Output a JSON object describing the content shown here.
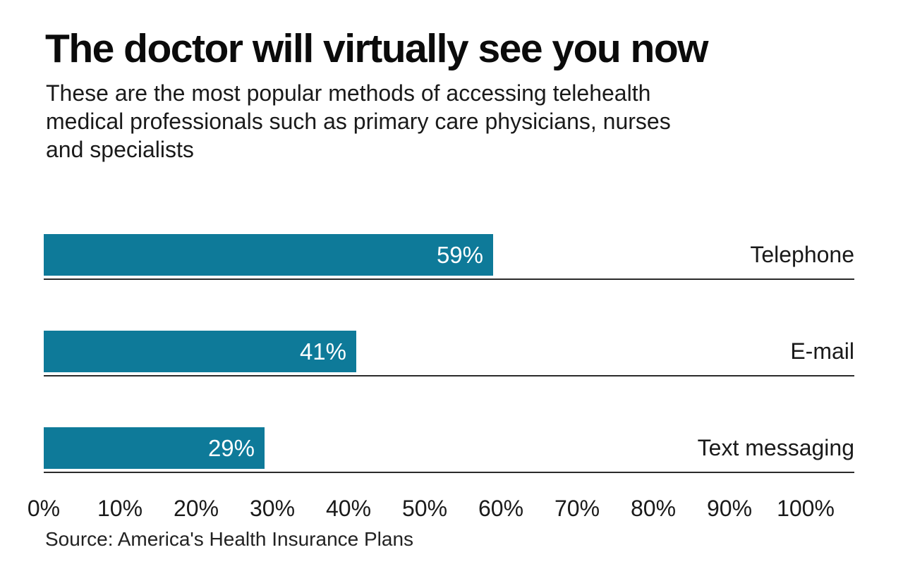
{
  "chart": {
    "title": "The doctor will virtually see you now",
    "subtitle_lines": [
      "These are the most popular methods of accessing telehealth",
      "medical professionals such as primary care physicians, nurses",
      "and specialists"
    ],
    "source": "Source: America's Health Insurance Plans",
    "colors": {
      "bar": "#0e7a99",
      "rule": "#2b2b2b",
      "value_label": "#ffffff",
      "text": "#1a1a1a"
    }
  },
  "chart_data": {
    "type": "bar",
    "orientation": "horizontal",
    "title": "The doctor will virtually see you now",
    "subtitle": "These are the most popular methods of accessing telehealth medical professionals such as primary care physicians, nurses and specialists",
    "categories": [
      "Telephone",
      "E-mail",
      "Text messaging"
    ],
    "values": [
      59,
      41,
      29
    ],
    "value_labels": [
      "59%",
      "41%",
      "29%"
    ],
    "xlabel": "",
    "ylabel": "",
    "xlim": [
      0,
      100
    ],
    "x_ticks": [
      "0%",
      "10%",
      "20%",
      "30%",
      "40%",
      "50%",
      "60%",
      "70%",
      "80%",
      "90%",
      "100%"
    ],
    "grid": false,
    "legend": false,
    "category_label_position": "right",
    "value_label_position": "inside-end",
    "source": "Source: America's Health Insurance Plans"
  }
}
